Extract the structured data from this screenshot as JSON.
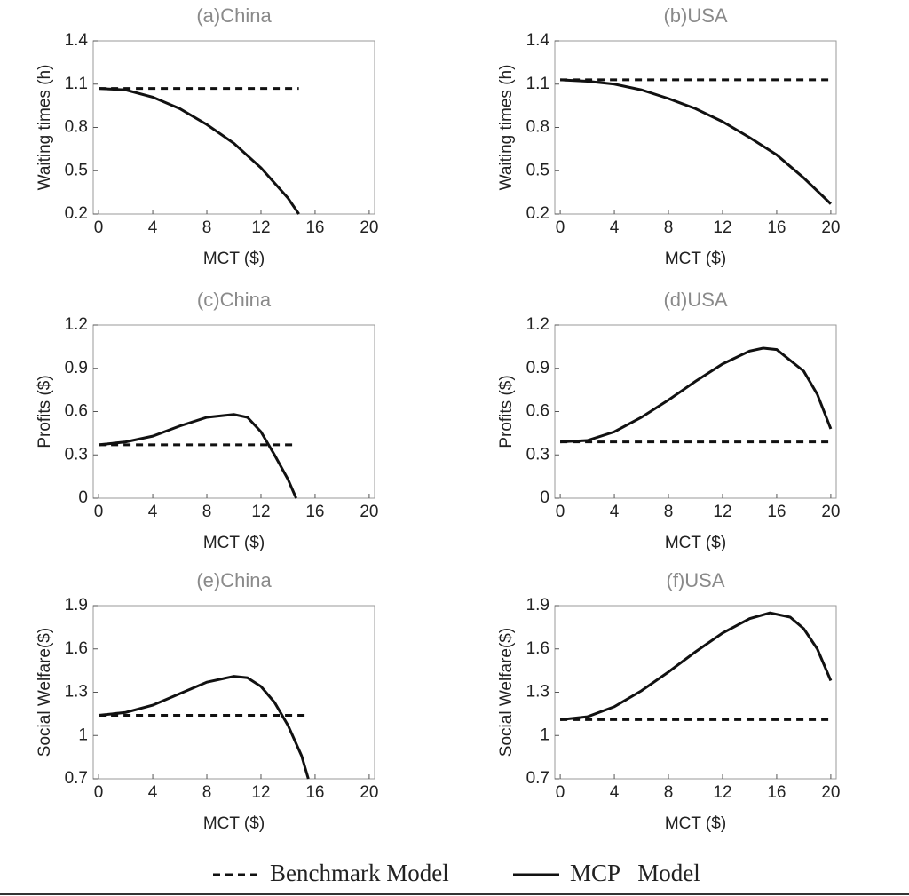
{
  "chart_data": [
    {
      "type": "line",
      "title": "(a)China",
      "x_label": "MCT ($)",
      "y_label": "Waiting times (h)",
      "x": [
        0,
        2,
        4,
        6,
        8,
        10,
        12,
        14,
        14.8
      ],
      "series": [
        {
          "name": "Benchmark Model",
          "color": "#111111",
          "dash": true,
          "values": [
            1.07,
            1.07,
            1.07,
            1.07,
            1.07,
            1.07,
            1.07,
            1.07,
            1.07
          ]
        },
        {
          "name": "MCP   Model",
          "color": "#111111",
          "dash": false,
          "values": [
            1.07,
            1.06,
            1.01,
            0.93,
            0.82,
            0.69,
            0.52,
            0.31,
            0.2
          ]
        }
      ],
      "xlim": [
        -0.4,
        20.4
      ],
      "xticks": [
        0,
        4,
        8,
        12,
        16,
        20
      ],
      "ylim": [
        0.2,
        1.4
      ],
      "yticks": [
        0.2,
        0.5,
        0.8,
        1.1,
        1.4
      ]
    },
    {
      "type": "line",
      "title": "(b)USA",
      "x_label": "MCT ($)",
      "y_label": "Waiting times (h)",
      "x": [
        0,
        2,
        4,
        6,
        8,
        10,
        12,
        14,
        16,
        18,
        20
      ],
      "series": [
        {
          "name": "Benchmark Model",
          "color": "#111111",
          "dash": true,
          "values": [
            1.13,
            1.13,
            1.13,
            1.13,
            1.13,
            1.13,
            1.13,
            1.13,
            1.13,
            1.13,
            1.13
          ]
        },
        {
          "name": "MCP   Model",
          "color": "#111111",
          "dash": false,
          "values": [
            1.13,
            1.12,
            1.1,
            1.06,
            1.0,
            0.93,
            0.84,
            0.73,
            0.61,
            0.45,
            0.27
          ]
        }
      ],
      "xlim": [
        -0.4,
        20.4
      ],
      "xticks": [
        0,
        4,
        8,
        12,
        16,
        20
      ],
      "ylim": [
        0.2,
        1.4
      ],
      "yticks": [
        0.2,
        0.5,
        0.8,
        1.1,
        1.4
      ]
    },
    {
      "type": "line",
      "title": "(c)China",
      "x_label": "MCT ($)",
      "y_label": "Profits ($)",
      "x": [
        0,
        2,
        4,
        6,
        8,
        10,
        11,
        12,
        13,
        14,
        14.6
      ],
      "series": [
        {
          "name": "Benchmark Model",
          "color": "#111111",
          "dash": true,
          "values": [
            0.37,
            0.37,
            0.37,
            0.37,
            0.37,
            0.37,
            0.37,
            0.37,
            0.37,
            0.37,
            0.37
          ]
        },
        {
          "name": "MCP   Model",
          "color": "#111111",
          "dash": false,
          "values": [
            0.37,
            0.39,
            0.43,
            0.5,
            0.56,
            0.58,
            0.56,
            0.46,
            0.3,
            0.13,
            0
          ]
        }
      ],
      "xlim": [
        -0.4,
        20.4
      ],
      "xticks": [
        0,
        4,
        8,
        12,
        16,
        20
      ],
      "ylim": [
        0,
        1.2
      ],
      "yticks": [
        0,
        0.3,
        0.6,
        0.9,
        1.2
      ]
    },
    {
      "type": "line",
      "title": "(d)USA",
      "x_label": "MCT ($)",
      "y_label": "Profits ($)",
      "x": [
        0,
        2,
        4,
        6,
        8,
        10,
        12,
        14,
        15,
        16,
        18,
        19,
        20
      ],
      "series": [
        {
          "name": "Benchmark Model",
          "color": "#111111",
          "dash": true,
          "values": [
            0.39,
            0.39,
            0.39,
            0.39,
            0.39,
            0.39,
            0.39,
            0.39,
            0.39,
            0.39,
            0.39,
            0.39,
            0.39
          ]
        },
        {
          "name": "MCP   Model",
          "color": "#111111",
          "dash": false,
          "values": [
            0.39,
            0.4,
            0.46,
            0.56,
            0.68,
            0.81,
            0.93,
            1.02,
            1.04,
            1.03,
            0.88,
            0.72,
            0.48
          ]
        }
      ],
      "xlim": [
        -0.4,
        20.4
      ],
      "xticks": [
        0,
        4,
        8,
        12,
        16,
        20
      ],
      "ylim": [
        0,
        1.2
      ],
      "yticks": [
        0,
        0.3,
        0.6,
        0.9,
        1.2
      ]
    },
    {
      "type": "line",
      "title": "(e)China",
      "x_label": "MCT ($)",
      "y_label": "Social Welfare($)",
      "x": [
        0,
        2,
        4,
        6,
        8,
        10,
        11,
        12,
        13,
        14,
        15,
        15.5
      ],
      "series": [
        {
          "name": "Benchmark Model",
          "color": "#111111",
          "dash": true,
          "values": [
            1.14,
            1.14,
            1.14,
            1.14,
            1.14,
            1.14,
            1.14,
            1.14,
            1.14,
            1.14,
            1.14,
            1.14
          ]
        },
        {
          "name": "MCP   Model",
          "color": "#111111",
          "dash": false,
          "values": [
            1.14,
            1.16,
            1.21,
            1.29,
            1.37,
            1.41,
            1.4,
            1.34,
            1.23,
            1.07,
            0.86,
            0.7
          ]
        }
      ],
      "xlim": [
        -0.4,
        20.4
      ],
      "xticks": [
        0,
        4,
        8,
        12,
        16,
        20
      ],
      "ylim": [
        0.7,
        1.9
      ],
      "yticks": [
        0.7,
        1,
        1.3,
        1.6,
        1.9
      ]
    },
    {
      "type": "line",
      "title": "(f)USA",
      "x_label": "MCT ($)",
      "y_label": "Social Welfare($)",
      "x": [
        0,
        2,
        4,
        6,
        8,
        10,
        12,
        14,
        15.5,
        17,
        18,
        19,
        20
      ],
      "series": [
        {
          "name": "Benchmark Model",
          "color": "#111111",
          "dash": true,
          "values": [
            1.11,
            1.11,
            1.11,
            1.11,
            1.11,
            1.11,
            1.11,
            1.11,
            1.11,
            1.11,
            1.11,
            1.11,
            1.11
          ]
        },
        {
          "name": "MCP   Model",
          "color": "#111111",
          "dash": false,
          "values": [
            1.11,
            1.13,
            1.2,
            1.31,
            1.44,
            1.58,
            1.71,
            1.81,
            1.85,
            1.82,
            1.74,
            1.6,
            1.38
          ]
        }
      ],
      "xlim": [
        -0.4,
        20.4
      ],
      "xticks": [
        0,
        4,
        8,
        12,
        16,
        20
      ],
      "ylim": [
        0.7,
        1.9
      ],
      "yticks": [
        0.7,
        1,
        1.3,
        1.6,
        1.9
      ]
    }
  ]
}
